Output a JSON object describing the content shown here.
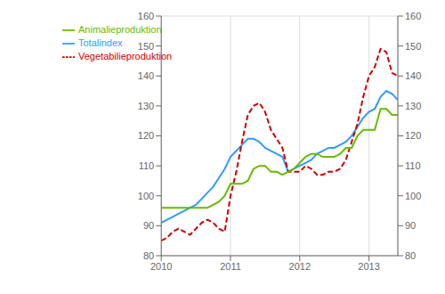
{
  "chart_data": {
    "type": "line",
    "x": [
      2010,
      2010.0833333333,
      2010.1666666667,
      2010.25,
      2010.3333333333,
      2010.4166666667,
      2010.5,
      2010.5833333333,
      2010.6666666667,
      2010.75,
      2010.8333333333,
      2010.9166666667,
      2011,
      2011.0833333333,
      2011.1666666667,
      2011.25,
      2011.3333333333,
      2011.4166666667,
      2011.5,
      2011.5833333333,
      2011.6666666667,
      2011.75,
      2011.8333333333,
      2011.9166666667,
      2012,
      2012.0833333333,
      2012.1666666667,
      2012.25,
      2012.3333333333,
      2012.4166666667,
      2012.5,
      2012.5833333333,
      2012.6666666667,
      2012.75,
      2012.8333333333,
      2012.9166666667,
      2013,
      2013.0833333333,
      2013.1666666667,
      2013.25,
      2013.3333333333,
      2013.4166666667
    ],
    "series": [
      {
        "name": "Totalindex",
        "color": "#3399ff",
        "line_style": "solid",
        "values": [
          91,
          92,
          93,
          94,
          95,
          96,
          97,
          99,
          101,
          103,
          106,
          109,
          113,
          115,
          117,
          119,
          119,
          118,
          116,
          115,
          114,
          113,
          108,
          109,
          110,
          111,
          112,
          114,
          115,
          116,
          116,
          117,
          118,
          120,
          123,
          126,
          128,
          129,
          133,
          135,
          134,
          132
        ]
      },
      {
        "name": "Vegetabilieproduktion",
        "color": "#cc0000",
        "line_style": "dashed",
        "values": [
          85,
          86,
          88,
          89,
          88,
          87,
          89,
          91,
          92,
          91,
          89,
          88,
          100,
          108,
          118,
          127,
          130,
          131,
          128,
          122,
          119,
          116,
          108,
          108,
          108,
          110,
          109,
          107,
          107,
          108,
          108,
          109,
          112,
          118,
          124,
          133,
          140,
          143,
          149,
          148,
          141,
          140
        ]
      },
      {
        "name": "Animalieproduktion",
        "color": "#66bb00",
        "line_style": "solid",
        "values": [
          96,
          96,
          96,
          96,
          96,
          96,
          96,
          96,
          96,
          97,
          98,
          100,
          104,
          104,
          104,
          105,
          109,
          110,
          110,
          108,
          108,
          107,
          108,
          109,
          111,
          113,
          114,
          114,
          113,
          113,
          113,
          114,
          116,
          116,
          120,
          122,
          122,
          122,
          129,
          129,
          127,
          127
        ]
      }
    ],
    "xlim": [
      2010,
      2013.4166666667
    ],
    "xticks": [
      2010,
      2011,
      2012,
      2013
    ],
    "ylim": [
      80,
      160
    ],
    "yticks": [
      80,
      90,
      100,
      110,
      120,
      130,
      140,
      150,
      160
    ],
    "y2lim": [
      80,
      160
    ],
    "y2ticks": [
      80,
      90,
      100,
      110,
      120,
      130,
      140,
      150,
      160
    ],
    "grid": true,
    "legend": "upper left"
  }
}
